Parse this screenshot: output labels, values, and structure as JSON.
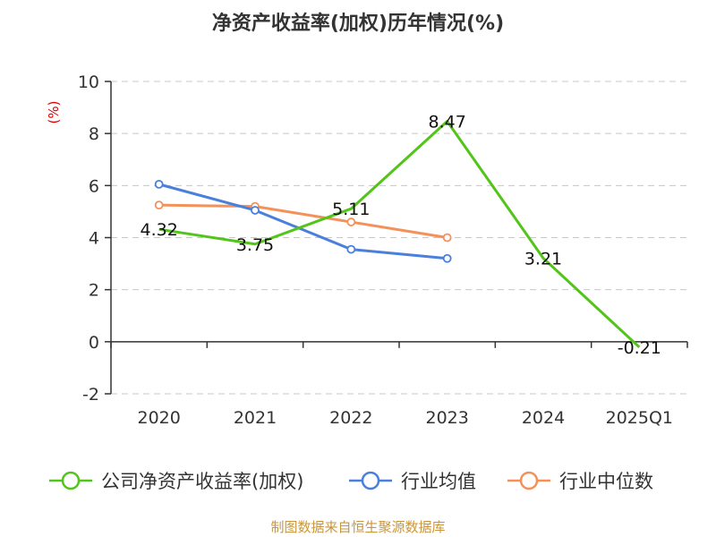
{
  "title": "净资产收益率(加权)历年情况(%)",
  "source": "制图数据来自恒生聚源数据库",
  "chart_data": {
    "type": "line",
    "title": "净资产收益率(加权)历年情况(%)",
    "ylabel": "(%)",
    "xlabel": "",
    "categories": [
      "2020",
      "2021",
      "2022",
      "2023",
      "2024",
      "2025Q1"
    ],
    "ylim": [
      -2,
      10
    ],
    "yticks": [
      -2,
      0,
      2,
      4,
      6,
      8,
      10
    ],
    "grid": true,
    "legend_position": "bottom",
    "series": [
      {
        "name": "公司净资产收益率(加权)",
        "color": "#52c41a",
        "values": [
          4.32,
          3.75,
          5.11,
          8.47,
          3.21,
          -0.21
        ],
        "labels": [
          "4.32",
          "3.75",
          "5.11",
          "8.47",
          "3.21",
          "-0.21"
        ]
      },
      {
        "name": "行业均值",
        "color": "#4a7fdc",
        "values": [
          6.05,
          5.05,
          3.55,
          3.2,
          null,
          null
        ]
      },
      {
        "name": "行业中位数",
        "color": "#f4905a",
        "values": [
          5.25,
          5.2,
          4.6,
          4.0,
          null,
          null
        ]
      }
    ]
  }
}
